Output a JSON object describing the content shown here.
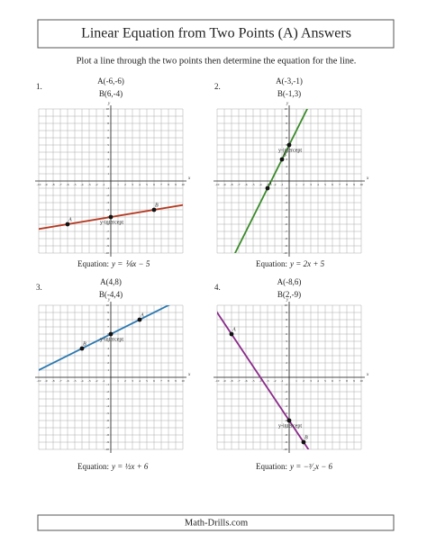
{
  "header": {
    "title": "Linear Equation from Two Points (A) Answers",
    "instruction": "Plot a line through the two points then determine the equation for the line."
  },
  "axis": {
    "ticks": [
      -10,
      -9,
      -8,
      -7,
      -6,
      -5,
      -4,
      -3,
      -2,
      -1,
      1,
      2,
      3,
      4,
      5,
      6,
      7,
      8,
      9,
      10
    ],
    "x_label": "x",
    "y_label": "y"
  },
  "problems": [
    {
      "number": "1.",
      "A": {
        "label": "A(-6,-6)",
        "name": "A",
        "x": -6,
        "y": -6
      },
      "B": {
        "label": "B(6,-4)",
        "name": "B",
        "x": 6,
        "y": -4
      },
      "intercept": {
        "label": "y-intercept",
        "y": -5
      },
      "equation_label": "Equation:",
      "equation": "y = ⅙x − 5",
      "color": "#b53a22"
    },
    {
      "number": "2.",
      "A": {
        "label": "A(-3,-1)",
        "name": "A",
        "x": -3,
        "y": -1
      },
      "B": {
        "label": "B(-1,3)",
        "name": "B",
        "x": -1,
        "y": 3
      },
      "intercept": {
        "label": "y-intercept",
        "y": 5
      },
      "equation_label": "Equation:",
      "equation": "y = 2x + 5",
      "color": "#3a8a2a"
    },
    {
      "number": "3.",
      "A": {
        "label": "A(4,8)",
        "name": "A",
        "x": 4,
        "y": 8
      },
      "B": {
        "label": "B(-4,4)",
        "name": "B",
        "x": -4,
        "y": 4
      },
      "intercept": {
        "label": "y-intercept",
        "y": 6
      },
      "equation_label": "Equation:",
      "equation": "y = ½x + 6",
      "color": "#2a78b0"
    },
    {
      "number": "4.",
      "A": {
        "label": "A(-8,6)",
        "name": "A",
        "x": -8,
        "y": 6
      },
      "B": {
        "label": "B(2,-9)",
        "name": "B",
        "x": 2,
        "y": -9
      },
      "intercept": {
        "label": "y-intercept",
        "y": -6
      },
      "equation_label": "Equation:",
      "equation": "y = −³⁄₂x − 6",
      "color": "#8a2a8a"
    }
  ],
  "footer": {
    "text": "Math-Drills.com"
  }
}
